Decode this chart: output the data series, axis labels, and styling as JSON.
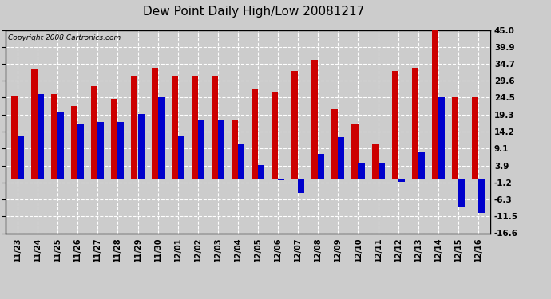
{
  "title": "Dew Point Daily High/Low 20081217",
  "copyright": "Copyright 2008 Cartronics.com",
  "dates": [
    "11/23",
    "11/24",
    "11/25",
    "11/26",
    "11/27",
    "11/28",
    "11/29",
    "11/30",
    "12/01",
    "12/02",
    "12/03",
    "12/04",
    "12/05",
    "12/06",
    "12/07",
    "12/08",
    "12/09",
    "12/10",
    "12/11",
    "12/12",
    "12/13",
    "12/14",
    "12/15",
    "12/16"
  ],
  "highs": [
    25.0,
    33.0,
    25.5,
    22.0,
    28.0,
    24.0,
    31.0,
    33.5,
    31.0,
    31.0,
    31.0,
    17.5,
    27.0,
    26.0,
    32.5,
    36.0,
    21.0,
    16.5,
    10.5,
    32.5,
    33.5,
    45.0,
    24.5,
    24.5
  ],
  "lows": [
    13.0,
    25.5,
    20.0,
    16.5,
    17.0,
    17.0,
    19.5,
    24.5,
    13.0,
    17.5,
    17.5,
    10.5,
    4.0,
    -0.5,
    -4.5,
    7.5,
    12.5,
    4.5,
    4.5,
    -1.0,
    8.0,
    24.5,
    -8.5,
    -10.5
  ],
  "ymin": -16.6,
  "ymax": 45.0,
  "yticks": [
    45.0,
    39.9,
    34.7,
    29.6,
    24.5,
    19.3,
    14.2,
    9.1,
    3.9,
    -1.2,
    -6.3,
    -11.5,
    -16.6
  ],
  "high_color": "#cc0000",
  "low_color": "#0000cc",
  "bg_color": "#cccccc",
  "plot_bg_color": "#cccccc",
  "grid_color": "#ffffff",
  "title_fontsize": 11,
  "copyright_fontsize": 6.5
}
